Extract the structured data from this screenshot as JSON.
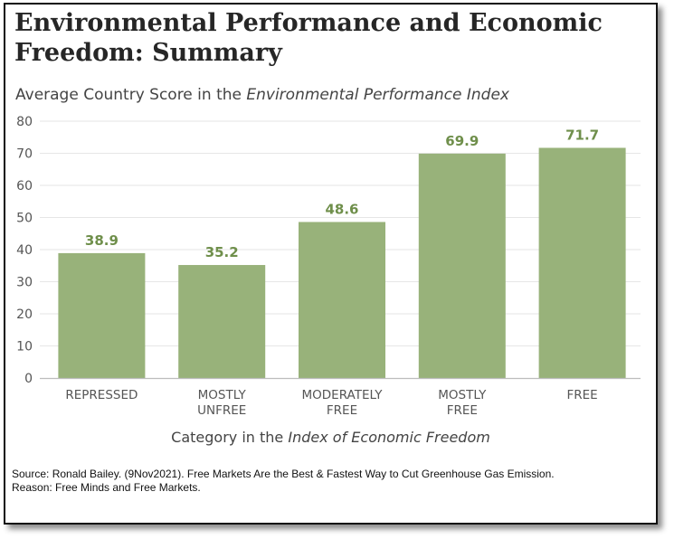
{
  "header": {
    "title": "Environmental Performance and Economic Freedom: Summary",
    "subtitle_prefix": "Average Country Score in the ",
    "subtitle_italic": "Environmental Performance Index"
  },
  "xaxis": {
    "label_prefix": "Category in the ",
    "label_italic": "Index of Economic Freedom"
  },
  "footer": {
    "source": "Source: Ronald Bailey. (9Nov2021). Free Markets Are the Best & Fastest Way to Cut Greenhouse Gas Emission. Reason: Free Minds and Free Markets."
  },
  "colors": {
    "bar": "#98b27a",
    "data_label": "#6f8f4b",
    "grid": "#e6e6e6",
    "axis": "#bdbdbd"
  },
  "chart_data": {
    "type": "bar",
    "title": "Environmental Performance and Economic Freedom: Summary",
    "ylabel": "Average Country Score in the Environmental Performance Index",
    "xlabel": "Category in the Index of Economic Freedom",
    "categories": [
      [
        "REPRESSED"
      ],
      [
        "MOSTLY",
        "UNFREE"
      ],
      [
        "MODERATELY",
        "FREE"
      ],
      [
        "MOSTLY",
        "FREE"
      ],
      [
        "FREE"
      ]
    ],
    "values": [
      38.9,
      35.2,
      48.6,
      69.9,
      71.7
    ],
    "data_labels": [
      "38.9",
      "35.2",
      "48.6",
      "69.9",
      "71.7"
    ],
    "yticks": [
      "0",
      "10",
      "20",
      "30",
      "40",
      "50",
      "60",
      "70",
      "80"
    ],
    "ylim": [
      0,
      80
    ],
    "grid": true,
    "legend": "none"
  }
}
